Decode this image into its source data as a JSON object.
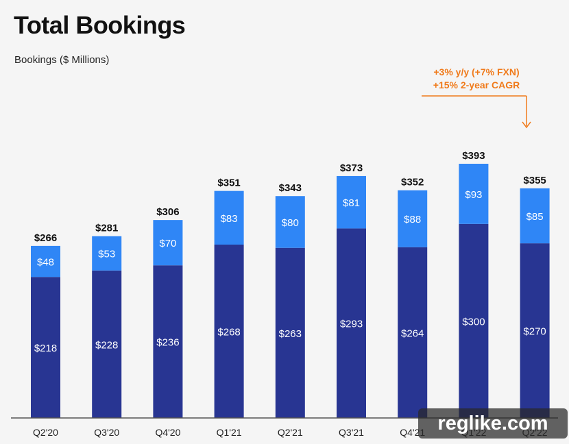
{
  "title": "Total Bookings",
  "ylabel": "Bookings ($ Millions)",
  "annotation": {
    "line1": "+3% y/y (+7% FXN)",
    "line2": "+15% 2-year CAGR"
  },
  "watermark": "reglike.com",
  "colors": {
    "bottom": "#283592",
    "top": "#2f86f6",
    "accent": "#f07a1a"
  },
  "chart_data": {
    "type": "bar",
    "stacked": true,
    "title": "Total Bookings",
    "ylabel": "Bookings ($ Millions)",
    "xlabel": "",
    "categories": [
      "Q2'20",
      "Q3'20",
      "Q4'20",
      "Q1'21",
      "Q2'21",
      "Q3'21",
      "Q4'21",
      "Q1'22",
      "Q2'22"
    ],
    "series": [
      {
        "values": [
          218,
          228,
          236,
          268,
          263,
          293,
          264,
          300,
          270
        ]
      },
      {
        "values": [
          48,
          53,
          70,
          83,
          80,
          81,
          88,
          93,
          85
        ]
      }
    ],
    "totals": [
      266,
      281,
      306,
      351,
      343,
      373,
      352,
      393,
      355
    ],
    "bottom_labels": [
      "$218",
      "$228",
      "$236",
      "$268",
      "$263",
      "$293",
      "$264",
      "$300",
      "$270"
    ],
    "top_labels": [
      "$48",
      "$53",
      "$70",
      "$83",
      "$80",
      "$81",
      "$88",
      "$93",
      "$85"
    ],
    "total_labels": [
      "$266",
      "$281",
      "$306",
      "$351",
      "$343",
      "$373",
      "$352",
      "$393",
      "$355"
    ],
    "ylim": [
      0,
      393
    ],
    "grid": false,
    "legend": "none"
  }
}
